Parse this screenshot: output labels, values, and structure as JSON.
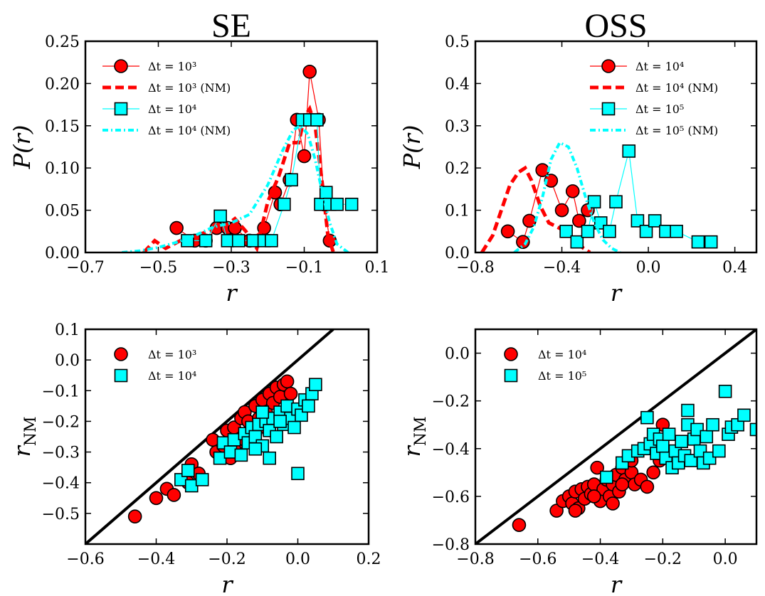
{
  "chart_data": [
    {
      "panel": "top-left",
      "type": "line",
      "title": "SE",
      "xlabel": "r",
      "ylabel": "P(r)",
      "xlim": [
        -0.7,
        0.1
      ],
      "ylim": [
        0,
        0.25
      ],
      "xticks": [
        "−0.7",
        "−0.5",
        "−0.3",
        "−0.1",
        "0.1"
      ],
      "xtick_values": [
        -0.7,
        -0.5,
        -0.3,
        -0.1,
        0.1
      ],
      "yticks": [
        "0.00",
        "0.05",
        "0.10",
        "0.15",
        "0.20",
        "0.25"
      ],
      "ytick_values": [
        0,
        0.05,
        0.1,
        0.15,
        0.2,
        0.25
      ],
      "legend_position": "top-left",
      "series": [
        {
          "name": "Δt = 10³",
          "style": "circle-line",
          "color": "#ff0000",
          "x": [
            -0.45,
            -0.4,
            -0.37,
            -0.34,
            -0.31,
            -0.29,
            -0.25,
            -0.21,
            -0.18,
            -0.165,
            -0.14,
            -0.12,
            -0.1,
            -0.085,
            -0.06,
            -0.045,
            -0.03
          ],
          "y": [
            0.029,
            0.014,
            0.014,
            0.029,
            0.029,
            0.029,
            0.014,
            0.029,
            0.071,
            0.057,
            0.086,
            0.157,
            0.114,
            0.214,
            0.157,
            0.057,
            0.014
          ]
        },
        {
          "name": "Δt = 10³ (NM)",
          "style": "dashed",
          "color": "#ff0000",
          "x": [
            -0.54,
            -0.51,
            -0.48,
            -0.44,
            -0.4,
            -0.36,
            -0.32,
            -0.29,
            -0.26,
            -0.23,
            -0.2,
            -0.17,
            -0.14,
            -0.115,
            -0.1,
            -0.085,
            -0.07,
            -0.05,
            -0.035,
            -0.02
          ],
          "y": [
            0.0,
            0.014,
            0.005,
            0.014,
            0.02,
            0.025,
            0.03,
            0.04,
            0.025,
            0.005,
            0.06,
            0.09,
            0.13,
            0.13,
            0.16,
            0.17,
            0.15,
            0.08,
            0.02,
            0.0
          ]
        },
        {
          "name": "Δt = 10⁴",
          "style": "square-line",
          "color": "#00ffff",
          "x": [
            -0.42,
            -0.37,
            -0.33,
            -0.31,
            -0.28,
            -0.24,
            -0.21,
            -0.19,
            -0.155,
            -0.135,
            -0.105,
            -0.085,
            -0.065,
            -0.055,
            -0.04,
            -0.03,
            -0.01,
            0.03
          ],
          "y": [
            0.014,
            0.014,
            0.043,
            0.014,
            0.014,
            0.014,
            0.014,
            0.014,
            0.057,
            0.086,
            0.157,
            0.157,
            0.157,
            0.057,
            0.071,
            0.057,
            0.057,
            0.057
          ]
        },
        {
          "name": "Δt = 10⁴ (NM)",
          "style": "dashdot",
          "color": "#00ffff",
          "x": [
            -0.6,
            -0.55,
            -0.5,
            -0.45,
            -0.4,
            -0.35,
            -0.3,
            -0.25,
            -0.2,
            -0.16,
            -0.13,
            -0.11,
            -0.09,
            -0.07,
            -0.05,
            -0.03,
            -0.01,
            0.02
          ],
          "y": [
            0.0,
            0.002,
            0.006,
            0.012,
            0.02,
            0.03,
            0.035,
            0.045,
            0.08,
            0.12,
            0.145,
            0.15,
            0.14,
            0.11,
            0.07,
            0.035,
            0.01,
            0.0
          ]
        }
      ]
    },
    {
      "panel": "top-right",
      "type": "line",
      "title": "OSS",
      "xlabel": "r",
      "ylabel": "P(r)",
      "xlim": [
        -0.8,
        0.5
      ],
      "ylim": [
        0,
        0.5
      ],
      "xticks": [
        "−0.8",
        "−0.4",
        "0.0",
        "0.4"
      ],
      "xtick_values": [
        -0.8,
        -0.4,
        0.0,
        0.4
      ],
      "yticks": [
        "0.0",
        "0.1",
        "0.2",
        "0.3",
        "0.4",
        "0.5"
      ],
      "ytick_values": [
        0,
        0.1,
        0.2,
        0.3,
        0.4,
        0.5
      ],
      "legend_position": "top-right",
      "series": [
        {
          "name": "Δt = 10⁴",
          "style": "circle-line",
          "color": "#ff0000",
          "x": [
            -0.65,
            -0.58,
            -0.55,
            -0.49,
            -0.45,
            -0.4,
            -0.35,
            -0.32,
            -0.28
          ],
          "y": [
            0.05,
            0.025,
            0.075,
            0.195,
            0.17,
            0.1,
            0.145,
            0.075,
            0.1
          ]
        },
        {
          "name": "Δt = 10⁴ (NM)",
          "style": "dashed",
          "color": "#ff0000",
          "x": [
            -0.77,
            -0.72,
            -0.68,
            -0.64,
            -0.6,
            -0.57,
            -0.54,
            -0.5,
            -0.46,
            -0.42,
            -0.38,
            -0.34,
            -0.3,
            -0.27
          ],
          "y": [
            0.0,
            0.04,
            0.1,
            0.16,
            0.19,
            0.2,
            0.17,
            0.11,
            0.07,
            0.06,
            0.05,
            0.03,
            0.01,
            0.0
          ]
        },
        {
          "name": "Δt = 10⁵",
          "style": "square-line",
          "color": "#00ffff",
          "x": [
            -0.38,
            -0.33,
            -0.28,
            -0.25,
            -0.22,
            -0.18,
            -0.15,
            -0.09,
            -0.05,
            -0.01,
            0.03,
            0.08,
            0.13,
            0.23,
            0.29
          ],
          "y": [
            0.05,
            0.025,
            0.05,
            0.12,
            0.07,
            0.05,
            0.12,
            0.24,
            0.075,
            0.05,
            0.075,
            0.05,
            0.05,
            0.025,
            0.025
          ]
        },
        {
          "name": "Δt = 10⁵ (NM)",
          "style": "dashdot",
          "color": "#00ffff",
          "x": [
            -0.62,
            -0.57,
            -0.53,
            -0.49,
            -0.45,
            -0.41,
            -0.37,
            -0.33,
            -0.29,
            -0.25,
            -0.21,
            -0.17,
            -0.13
          ],
          "y": [
            0.0,
            0.02,
            0.06,
            0.13,
            0.22,
            0.26,
            0.25,
            0.2,
            0.13,
            0.07,
            0.03,
            0.01,
            0.0
          ]
        }
      ]
    },
    {
      "panel": "bottom-left",
      "type": "scatter",
      "title": "",
      "xlabel": "r",
      "ylabel": "r_NM",
      "xlim": [
        -0.6,
        0.2
      ],
      "ylim": [
        -0.6,
        0.1
      ],
      "xticks": [
        "−0.6",
        "−0.4",
        "−0.2",
        "0.0",
        "0.2"
      ],
      "xtick_values": [
        -0.6,
        -0.4,
        -0.2,
        0.0,
        0.2
      ],
      "yticks": [
        "−0.5",
        "−0.4",
        "−0.3",
        "−0.2",
        "−0.1",
        "0.0",
        "0.1"
      ],
      "ytick_values": [
        -0.5,
        -0.4,
        -0.3,
        -0.2,
        -0.1,
        0.0,
        0.1
      ],
      "legend_position": "top-left",
      "diagonal": true,
      "series": [
        {
          "name": "Δt = 10³",
          "marker": "circle",
          "color": "#ff0000",
          "x": [
            -0.46,
            -0.4,
            -0.37,
            -0.35,
            -0.31,
            -0.3,
            -0.28,
            -0.24,
            -0.23,
            -0.21,
            -0.2,
            -0.19,
            -0.18,
            -0.17,
            -0.16,
            -0.15,
            -0.14,
            -0.13,
            -0.12,
            -0.11,
            -0.1,
            -0.09,
            -0.08,
            -0.07,
            -0.06,
            -0.05,
            -0.04,
            -0.03,
            -0.02,
            -0.12,
            -0.15,
            -0.18,
            -0.09
          ],
          "y": [
            -0.51,
            -0.45,
            -0.42,
            -0.44,
            -0.4,
            -0.34,
            -0.37,
            -0.26,
            -0.3,
            -0.28,
            -0.23,
            -0.32,
            -0.22,
            -0.27,
            -0.19,
            -0.17,
            -0.2,
            -0.23,
            -0.15,
            -0.19,
            -0.13,
            -0.17,
            -0.11,
            -0.14,
            -0.09,
            -0.12,
            -0.08,
            -0.07,
            -0.11,
            -0.24,
            -0.26,
            -0.29,
            -0.22
          ]
        },
        {
          "name": "Δt = 10⁴",
          "marker": "square",
          "color": "#00ffff",
          "x": [
            -0.33,
            -0.31,
            -0.3,
            -0.27,
            -0.22,
            -0.21,
            -0.19,
            -0.18,
            -0.16,
            -0.15,
            -0.14,
            -0.13,
            -0.12,
            -0.11,
            -0.1,
            -0.09,
            -0.08,
            -0.07,
            -0.06,
            -0.05,
            -0.04,
            -0.03,
            -0.02,
            -0.01,
            0.0,
            0.01,
            0.02,
            0.03,
            0.04,
            0.05,
            -0.08,
            -0.12,
            -0.05,
            0.0,
            -0.1
          ],
          "y": [
            -0.39,
            -0.36,
            -0.41,
            -0.39,
            -0.32,
            -0.27,
            -0.3,
            -0.26,
            -0.31,
            -0.24,
            -0.27,
            -0.22,
            -0.25,
            -0.21,
            -0.28,
            -0.2,
            -0.23,
            -0.19,
            -0.25,
            -0.17,
            -0.21,
            -0.15,
            -0.19,
            -0.22,
            -0.16,
            -0.18,
            -0.13,
            -0.15,
            -0.11,
            -0.08,
            -0.32,
            -0.29,
            -0.2,
            -0.37,
            -0.17
          ]
        }
      ]
    },
    {
      "panel": "bottom-right",
      "type": "scatter",
      "title": "",
      "xlabel": "r",
      "ylabel": "r_NM",
      "xlim": [
        -0.8,
        0.1
      ],
      "ylim": [
        -0.8,
        0.1
      ],
      "xticks": [
        "−0.8",
        "−0.6",
        "−0.4",
        "−0.2",
        "0.0"
      ],
      "xtick_values": [
        -0.8,
        -0.6,
        -0.4,
        -0.2,
        0.0
      ],
      "yticks": [
        "−0.8",
        "−0.6",
        "−0.4",
        "−0.2",
        "0.0"
      ],
      "ytick_values": [
        -0.8,
        -0.6,
        -0.4,
        -0.2,
        0.0
      ],
      "legend_position": "top-left",
      "diagonal": true,
      "series": [
        {
          "name": "Δt = 10⁴",
          "marker": "circle",
          "color": "#ff0000",
          "x": [
            -0.66,
            -0.54,
            -0.52,
            -0.5,
            -0.49,
            -0.48,
            -0.47,
            -0.46,
            -0.45,
            -0.44,
            -0.43,
            -0.42,
            -0.41,
            -0.4,
            -0.39,
            -0.38,
            -0.37,
            -0.36,
            -0.35,
            -0.34,
            -0.33,
            -0.32,
            -0.31,
            -0.3,
            -0.29,
            -0.27,
            -0.25,
            -0.23,
            -0.21,
            -0.2,
            -0.48,
            -0.42,
            -0.36,
            -0.33,
            -0.3
          ],
          "y": [
            -0.72,
            -0.66,
            -0.62,
            -0.6,
            -0.63,
            -0.58,
            -0.65,
            -0.57,
            -0.61,
            -0.56,
            -0.59,
            -0.55,
            -0.48,
            -0.62,
            -0.57,
            -0.53,
            -0.6,
            -0.55,
            -0.51,
            -0.58,
            -0.48,
            -0.53,
            -0.46,
            -0.5,
            -0.55,
            -0.53,
            -0.56,
            -0.5,
            -0.45,
            -0.3,
            -0.66,
            -0.6,
            -0.63,
            -0.55,
            -0.45
          ]
        },
        {
          "name": "Δt = 10⁵",
          "marker": "square",
          "color": "#00ffff",
          "x": [
            -0.38,
            -0.33,
            -0.31,
            -0.28,
            -0.26,
            -0.24,
            -0.23,
            -0.22,
            -0.21,
            -0.2,
            -0.19,
            -0.18,
            -0.17,
            -0.16,
            -0.15,
            -0.14,
            -0.13,
            -0.12,
            -0.11,
            -0.1,
            -0.09,
            -0.08,
            -0.07,
            -0.06,
            -0.05,
            -0.04,
            -0.02,
            0.0,
            0.01,
            0.02,
            0.04,
            0.06,
            0.1,
            -0.25,
            -0.12
          ],
          "y": [
            -0.52,
            -0.46,
            -0.43,
            -0.41,
            -0.4,
            -0.38,
            -0.34,
            -0.42,
            -0.36,
            -0.39,
            -0.44,
            -0.34,
            -0.48,
            -0.41,
            -0.46,
            -0.37,
            -0.43,
            -0.3,
            -0.45,
            -0.36,
            -0.32,
            -0.41,
            -0.46,
            -0.35,
            -0.44,
            -0.3,
            -0.41,
            -0.16,
            -0.34,
            -0.31,
            -0.3,
            -0.26,
            -0.32,
            -0.27,
            -0.24
          ]
        }
      ]
    }
  ]
}
